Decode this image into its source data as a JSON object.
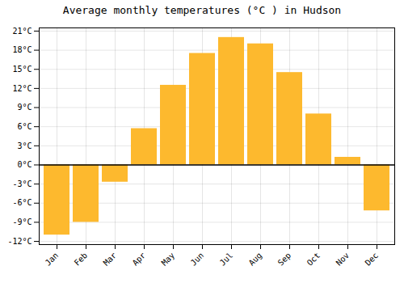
{
  "chart_data": {
    "type": "bar",
    "title": "Average monthly temperatures (°C ) in Hudson",
    "categories": [
      "Jan",
      "Feb",
      "Mar",
      "Apr",
      "May",
      "Jun",
      "Jul",
      "Aug",
      "Sep",
      "Oct",
      "Nov",
      "Dec"
    ],
    "values": [
      -11.0,
      -9.0,
      -2.7,
      5.7,
      12.5,
      17.5,
      20.0,
      19.0,
      14.5,
      8.0,
      1.2,
      -7.2
    ],
    "color": "#FDB92E",
    "ylim": [
      -12.5,
      21.5
    ],
    "yticks": [
      {
        "value": -12,
        "label": "-12°C"
      },
      {
        "value": -9,
        "label": "-9°C"
      },
      {
        "value": -6,
        "label": "-6°C"
      },
      {
        "value": -3,
        "label": "-3°C"
      },
      {
        "value": 0,
        "label": "0°C"
      },
      {
        "value": 3,
        "label": "3°C"
      },
      {
        "value": 6,
        "label": "6°C"
      },
      {
        "value": 9,
        "label": "9°C"
      },
      {
        "value": 12,
        "label": "12°C"
      },
      {
        "value": 15,
        "label": "15°C"
      },
      {
        "value": 18,
        "label": "18°C"
      },
      {
        "value": 21,
        "label": "21°C"
      }
    ],
    "grid": true
  }
}
